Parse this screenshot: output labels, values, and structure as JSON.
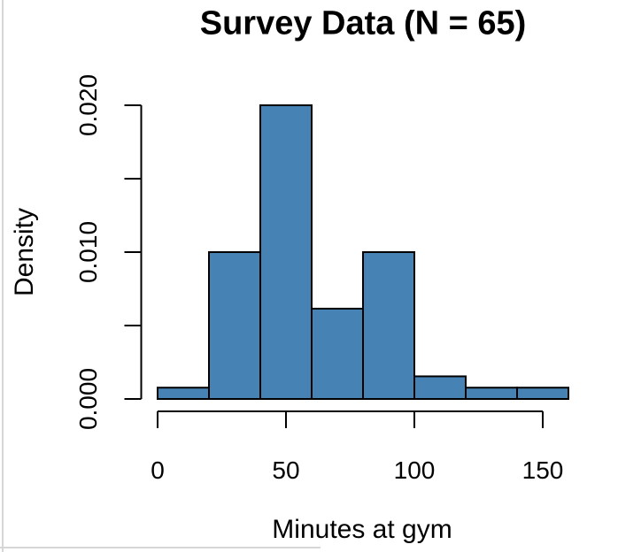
{
  "page": {
    "background": "#ffffff",
    "pane_border_color": "#d6d6d6"
  },
  "chart_data": {
    "type": "bar",
    "subtype": "histogram",
    "title": "Survey Data (N = 65)",
    "xlabel": "Minutes at gym",
    "ylabel": "Density",
    "sample_size": 65,
    "bin_width": 20,
    "bins": [
      {
        "range": [
          0,
          20
        ],
        "density": 0.00077,
        "count": 1
      },
      {
        "range": [
          20,
          40
        ],
        "density": 0.01,
        "count": 13
      },
      {
        "range": [
          40,
          60
        ],
        "density": 0.02,
        "count": 26
      },
      {
        "range": [
          60,
          80
        ],
        "density": 0.00615,
        "count": 8
      },
      {
        "range": [
          80,
          100
        ],
        "density": 0.01,
        "count": 13
      },
      {
        "range": [
          100,
          120
        ],
        "density": 0.00154,
        "count": 2
      },
      {
        "range": [
          120,
          140
        ],
        "density": 0.00077,
        "count": 1
      },
      {
        "range": [
          140,
          160
        ],
        "density": 0.00077,
        "count": 1
      }
    ],
    "x_ticks": [
      {
        "value": 0,
        "label": "0"
      },
      {
        "value": 50,
        "label": "50"
      },
      {
        "value": 100,
        "label": "100"
      },
      {
        "value": 150,
        "label": "150"
      }
    ],
    "y_ticks": [
      {
        "value": 0.0,
        "label": "0.000"
      },
      {
        "value": 0.005,
        "label": ""
      },
      {
        "value": 0.01,
        "label": "0.010"
      },
      {
        "value": 0.015,
        "label": ""
      },
      {
        "value": 0.02,
        "label": "0.020"
      }
    ],
    "xlim": [
      0,
      160
    ],
    "ylim": [
      0,
      0.02
    ],
    "grid": false,
    "legend": false,
    "bar_fill": "#4682B4",
    "bar_stroke": "#000000",
    "axis_color": "#000000",
    "text_color": "#000000"
  }
}
